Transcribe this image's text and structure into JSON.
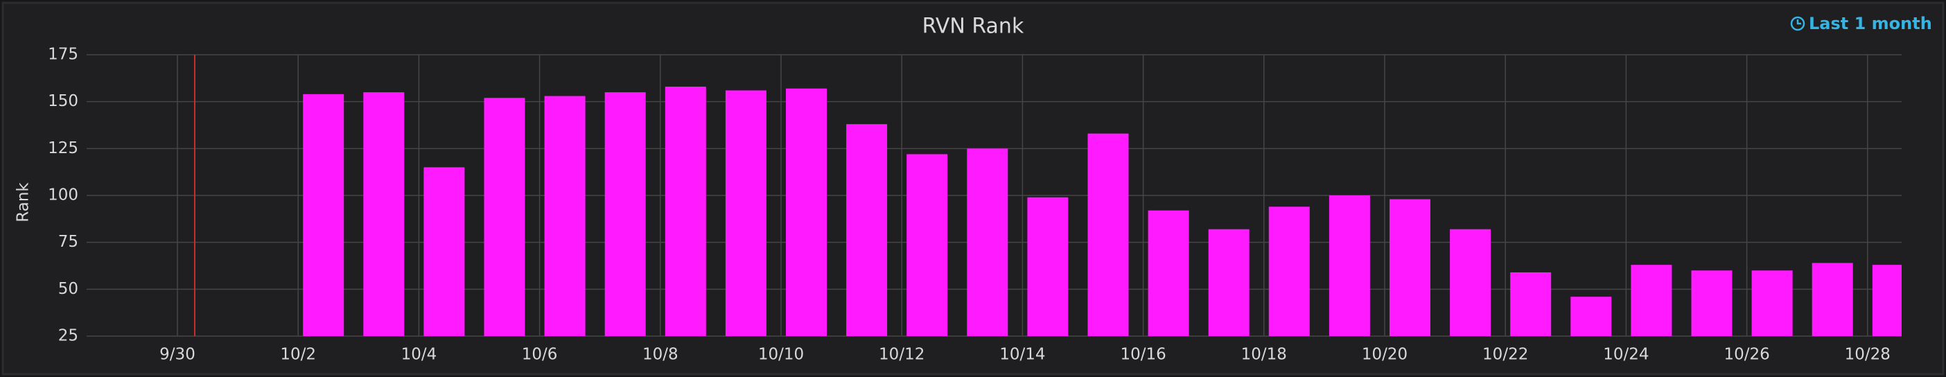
{
  "chart_data": {
    "type": "bar",
    "title": "RVN Rank",
    "time_range": "Last 1 month",
    "y_label": "Rank",
    "categories": [
      "9/30",
      null,
      "10/2",
      null,
      "10/4",
      null,
      "10/6",
      null,
      "10/8",
      null,
      "10/10",
      null,
      "10/12",
      null,
      "10/14",
      null,
      "10/16",
      null,
      "10/18",
      null,
      "10/20",
      null,
      "10/22",
      null,
      "10/24",
      null,
      "10/26",
      null,
      "10/28"
    ],
    "values": [
      null,
      null,
      154,
      155,
      115,
      152,
      153,
      155,
      158,
      156,
      157,
      138,
      122,
      125,
      99,
      133,
      92,
      82,
      94,
      100,
      98,
      82,
      59,
      46,
      63,
      60,
      60,
      64,
      63
    ],
    "color": "#ff1aff",
    "ylim": [
      25,
      175
    ],
    "yticks": [
      25,
      50,
      75,
      100,
      125,
      150,
      175
    ],
    "grid": true
  }
}
